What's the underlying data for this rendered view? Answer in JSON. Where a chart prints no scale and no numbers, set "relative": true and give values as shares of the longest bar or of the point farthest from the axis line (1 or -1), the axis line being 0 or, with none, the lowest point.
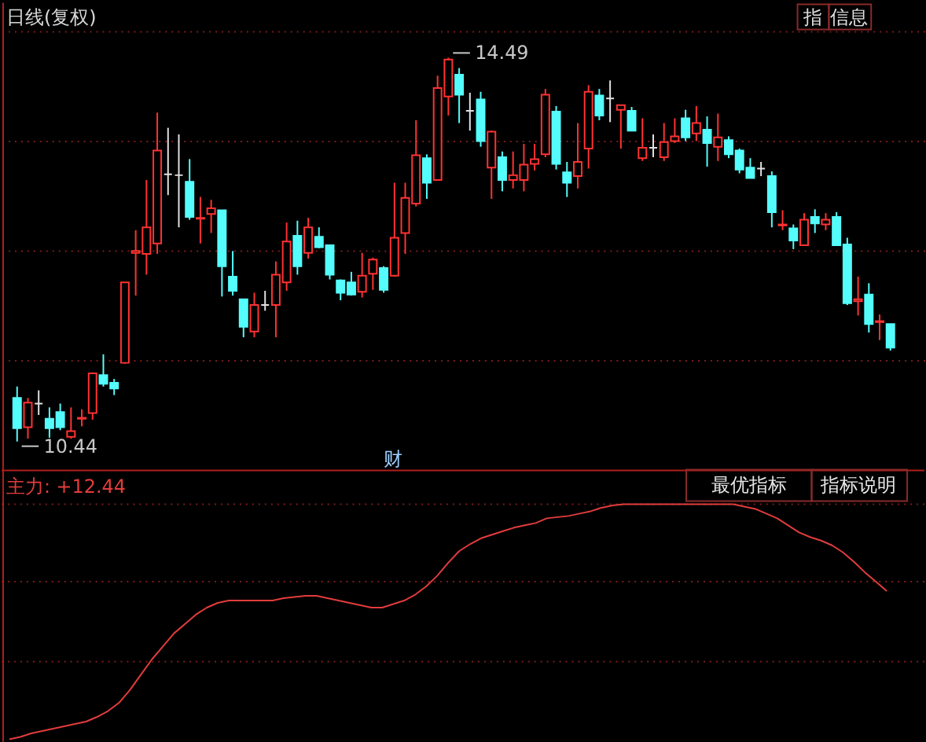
{
  "chart_data": [
    {
      "type": "candlestick",
      "title": "日线(复权)",
      "categories": [
        null,
        null,
        null,
        null,
        null,
        null,
        null,
        null,
        null,
        null,
        null,
        null,
        null,
        null,
        null,
        null,
        null,
        null,
        null,
        null,
        null,
        null,
        null,
        null,
        null,
        null,
        null,
        null,
        null,
        null,
        null,
        null,
        null,
        null,
        null,
        null,
        null,
        null,
        null,
        null,
        null,
        null,
        null,
        null,
        null,
        null,
        null,
        null,
        null,
        null,
        null,
        null,
        null,
        null,
        null,
        null,
        null,
        null,
        null,
        null,
        null,
        null,
        null,
        null,
        null,
        null,
        null,
        null,
        null,
        null,
        null,
        null,
        null,
        null,
        null,
        null,
        null,
        null,
        null,
        null,
        null,
        null
      ],
      "ohlc": [
        [
          10.9,
          11.02,
          10.44,
          10.58
        ],
        [
          10.59,
          10.9,
          10.47,
          10.85
        ],
        [
          10.84,
          10.98,
          10.72,
          10.84
        ],
        [
          10.68,
          10.8,
          10.48,
          10.58
        ],
        [
          10.75,
          10.84,
          10.56,
          10.59
        ],
        [
          10.49,
          10.8,
          10.47,
          10.55
        ],
        [
          10.68,
          10.78,
          10.6,
          10.69
        ],
        [
          10.74,
          11.17,
          10.67,
          11.16
        ],
        [
          11.14,
          11.36,
          11.02,
          11.05
        ],
        [
          11.06,
          11.1,
          10.93,
          11.0
        ],
        [
          11.27,
          12.12,
          11.26,
          12.12
        ],
        [
          12.43,
          12.67,
          11.98,
          12.45
        ],
        [
          12.42,
          13.2,
          12.2,
          12.7
        ],
        [
          12.53,
          13.91,
          12.42,
          13.51
        ],
        [
          13.26,
          13.75,
          13.04,
          13.26
        ],
        [
          13.25,
          13.68,
          12.7,
          13.25
        ],
        [
          13.18,
          13.42,
          12.78,
          12.81
        ],
        [
          12.79,
          13.02,
          12.53,
          12.8
        ],
        [
          12.84,
          12.99,
          12.64,
          12.9
        ],
        [
          12.88,
          12.88,
          11.97,
          12.29
        ],
        [
          12.18,
          12.45,
          11.98,
          12.03
        ],
        [
          11.94,
          11.94,
          11.54,
          11.65
        ],
        [
          11.6,
          12.01,
          11.54,
          11.88
        ],
        [
          11.88,
          12.03,
          11.82,
          11.88
        ],
        [
          11.88,
          12.34,
          11.54,
          12.2
        ],
        [
          12.12,
          12.75,
          12.03,
          12.55
        ],
        [
          12.61,
          12.77,
          12.2,
          12.29
        ],
        [
          12.43,
          12.8,
          12.37,
          12.7
        ],
        [
          12.6,
          12.7,
          12.48,
          12.49
        ],
        [
          12.51,
          12.51,
          12.15,
          12.2
        ],
        [
          12.14,
          12.15,
          11.93,
          12.01
        ],
        [
          12.12,
          12.23,
          11.98,
          11.99
        ],
        [
          12.02,
          12.43,
          11.96,
          12.19
        ],
        [
          12.21,
          12.38,
          12.04,
          12.36
        ],
        [
          12.27,
          12.29,
          12.01,
          12.04
        ],
        [
          12.19,
          13.17,
          12.18,
          12.59
        ],
        [
          12.64,
          13.17,
          12.42,
          13.01
        ],
        [
          12.95,
          13.83,
          12.92,
          13.46
        ],
        [
          13.43,
          13.47,
          13.0,
          13.17
        ],
        [
          13.2,
          14.3,
          13.2,
          14.17
        ],
        [
          14.08,
          14.49,
          13.88,
          14.47
        ],
        [
          14.31,
          14.38,
          13.8,
          14.1
        ],
        [
          13.93,
          14.12,
          13.72,
          13.93
        ],
        [
          14.05,
          14.13,
          13.55,
          13.61
        ],
        [
          13.33,
          13.72,
          13.0,
          13.71
        ],
        [
          13.44,
          13.5,
          13.08,
          13.2
        ],
        [
          13.2,
          13.5,
          13.11,
          13.25
        ],
        [
          13.2,
          13.58,
          13.08,
          13.36
        ],
        [
          13.37,
          13.58,
          13.3,
          13.42
        ],
        [
          13.47,
          14.16,
          13.44,
          14.1
        ],
        [
          13.92,
          13.98,
          13.31,
          13.37
        ],
        [
          13.28,
          13.39,
          13.02,
          13.17
        ],
        [
          13.24,
          13.8,
          13.11,
          13.39
        ],
        [
          13.53,
          14.2,
          13.32,
          14.13
        ],
        [
          14.09,
          14.16,
          13.83,
          13.88
        ],
        [
          14.06,
          14.25,
          13.81,
          14.06
        ],
        [
          13.94,
          13.99,
          13.53,
          13.99
        ],
        [
          13.93,
          13.97,
          13.72,
          13.72
        ],
        [
          13.43,
          13.85,
          13.4,
          13.54
        ],
        [
          13.54,
          13.68,
          13.44,
          13.54
        ],
        [
          13.44,
          13.8,
          13.4,
          13.6
        ],
        [
          13.61,
          13.85,
          13.59,
          13.66
        ],
        [
          13.85,
          13.94,
          13.61,
          13.65
        ],
        [
          13.69,
          13.98,
          13.61,
          13.8
        ],
        [
          13.73,
          13.87,
          13.34,
          13.59
        ],
        [
          13.55,
          13.9,
          13.4,
          13.65
        ],
        [
          13.62,
          13.66,
          13.43,
          13.47
        ],
        [
          13.51,
          13.53,
          13.27,
          13.31
        ],
        [
          13.33,
          13.43,
          13.22,
          13.22
        ],
        [
          13.32,
          13.39,
          13.24,
          13.32
        ],
        [
          13.24,
          13.29,
          12.7,
          12.86
        ],
        [
          12.72,
          12.88,
          12.67,
          12.73
        ],
        [
          12.69,
          12.73,
          12.47,
          12.56
        ],
        [
          12.51,
          12.85,
          12.51,
          12.78
        ],
        [
          12.81,
          12.89,
          12.64,
          12.74
        ],
        [
          12.73,
          12.85,
          12.67,
          12.78
        ],
        [
          12.81,
          12.86,
          12.51,
          12.51
        ],
        [
          12.52,
          12.59,
          11.88,
          11.9
        ],
        [
          11.92,
          12.18,
          11.77,
          11.94
        ],
        [
          11.99,
          12.11,
          11.59,
          11.68
        ],
        [
          11.7,
          11.78,
          11.51,
          11.71
        ],
        [
          11.68,
          11.68,
          11.4,
          11.43
        ]
      ],
      "colors": [
        "#54fcfc",
        "#ff3232",
        "#e0e0e0",
        "#54fcfc",
        "#54fcfc",
        "#ff3232",
        "#ff3232",
        "#ff3232",
        "#54fcfc",
        "#54fcfc",
        "#ff3232",
        "#ff3232",
        "#ff3232",
        "#ff3232",
        "#e0e0e0",
        "#e0e0e0",
        "#54fcfc",
        "#ff3232",
        "#ff3232",
        "#54fcfc",
        "#54fcfc",
        "#54fcfc",
        "#ff3232",
        "#e0e0e0",
        "#ff3232",
        "#ff3232",
        "#54fcfc",
        "#ff3232",
        "#54fcfc",
        "#54fcfc",
        "#54fcfc",
        "#54fcfc",
        "#ff3232",
        "#ff3232",
        "#54fcfc",
        "#ff3232",
        "#ff3232",
        "#ff3232",
        "#54fcfc",
        "#ff3232",
        "#ff3232",
        "#54fcfc",
        "#e0e0e0",
        "#54fcfc",
        "#ff3232",
        "#54fcfc",
        "#ff3232",
        "#ff3232",
        "#ff3232",
        "#ff3232",
        "#54fcfc",
        "#54fcfc",
        "#ff3232",
        "#ff3232",
        "#54fcfc",
        "#e0e0e0",
        "#ff3232",
        "#54fcfc",
        "#ff3232",
        "#e0e0e0",
        "#ff3232",
        "#ff3232",
        "#54fcfc",
        "#ff3232",
        "#54fcfc",
        "#ff3232",
        "#54fcfc",
        "#54fcfc",
        "#54fcfc",
        "#e0e0e0",
        "#54fcfc",
        "#ff3232",
        "#54fcfc",
        "#ff3232",
        "#54fcfc",
        "#ff3232",
        "#54fcfc",
        "#54fcfc",
        "#ff3232",
        "#54fcfc",
        "#ff3232",
        "#54fcfc"
      ],
      "yticks": [
        {
          "value": 14.77,
          "label": null
        },
        {
          "value": 13.61,
          "label": null
        },
        {
          "value": 12.46,
          "label": null
        },
        {
          "value": 11.3,
          "label": null
        }
      ],
      "annotations": [
        "14.49",
        "10.44",
        "财",
        "指",
        "信息"
      ],
      "grid": "y",
      "tick_labels": false
    },
    {
      "type": "line",
      "relative": true,
      "categories": [
        null,
        null,
        null,
        null,
        null,
        null,
        null,
        null,
        null,
        null,
        null,
        null,
        null,
        null,
        null,
        null,
        null,
        null,
        null,
        null,
        null,
        null,
        null,
        null,
        null,
        null,
        null,
        null,
        null,
        null,
        null,
        null,
        null,
        null,
        null,
        null,
        null,
        null,
        null,
        null,
        null,
        null,
        null,
        null,
        null,
        null,
        null,
        null,
        null,
        null,
        null,
        null,
        null,
        null,
        null,
        null,
        null,
        null,
        null,
        null,
        null,
        null,
        null,
        null,
        null,
        null,
        null,
        null,
        null,
        null,
        null,
        null,
        null,
        null,
        null,
        null,
        null,
        null,
        null,
        null,
        null,
        null
      ],
      "series": [
        {
          "name": "主力: +12.44",
          "color": "#e23c3c",
          "values": [
            0,
            0.01,
            0.025,
            0.035,
            0.045,
            0.055,
            0.065,
            0.075,
            0.095,
            0.12,
            0.155,
            0.21,
            0.275,
            0.34,
            0.395,
            0.45,
            0.49,
            0.53,
            0.56,
            0.58,
            0.59,
            0.59,
            0.59,
            0.59,
            0.59,
            0.6,
            0.605,
            0.61,
            0.61,
            0.6,
            0.59,
            0.58,
            0.57,
            0.56,
            0.56,
            0.575,
            0.59,
            0.615,
            0.65,
            0.695,
            0.75,
            0.8,
            0.83,
            0.855,
            0.87,
            0.885,
            0.9,
            0.91,
            0.92,
            0.94,
            0.945,
            0.95,
            0.96,
            0.97,
            0.985,
            0.995,
            1,
            1,
            1,
            1,
            1,
            1,
            1,
            1,
            1,
            1,
            1,
            0.99,
            0.98,
            0.96,
            0.94,
            0.91,
            0.88,
            0.86,
            0.845,
            0.825,
            0.795,
            0.755,
            0.71,
            0.67,
            0.63,
            null
          ]
        }
      ],
      "ref_lines": [
        {
          "axis": "y",
          "value": 1,
          "color": "#7a1c1c",
          "line_style": "dotted"
        },
        {
          "axis": "y",
          "value": 0.67,
          "color": "#7a1c1c",
          "line_style": "dotted"
        },
        {
          "axis": "y",
          "value": 0.33,
          "color": "#7a1c1c",
          "line_style": "dotted"
        }
      ],
      "annotations": [
        "最优指标",
        "指标说明"
      ],
      "legend": "top left",
      "tick_labels": false
    }
  ]
}
